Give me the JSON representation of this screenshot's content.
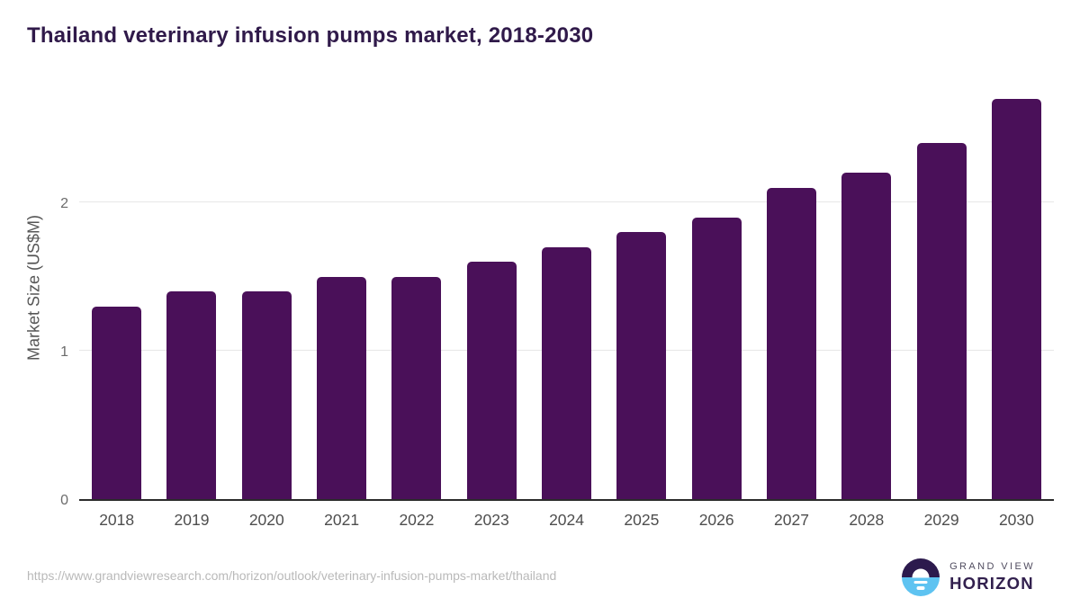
{
  "chart": {
    "title": "Thailand veterinary infusion pumps market, 2018-2030",
    "ylabel": "Market Size (US$M)"
  },
  "chart_data": {
    "type": "bar",
    "title": "Thailand veterinary infusion pumps market, 2018-2030",
    "categories": [
      "2018",
      "2019",
      "2020",
      "2021",
      "2022",
      "2023",
      "2024",
      "2025",
      "2026",
      "2027",
      "2028",
      "2029",
      "2030"
    ],
    "values": [
      1.3,
      1.4,
      1.4,
      1.5,
      1.5,
      1.6,
      1.7,
      1.8,
      1.9,
      2.1,
      2.2,
      2.4,
      2.7
    ],
    "xlabel": "",
    "ylabel": "Market Size (US$M)",
    "ylim": [
      0,
      2.77
    ],
    "yticks": [
      0,
      1,
      2
    ],
    "grid": "horizontal gridlines at y=1 and y=2",
    "legend": "none",
    "bar_color": "#4a1059"
  },
  "footer": {
    "url": "https://www.grandviewresearch.com/horizon/outlook/veterinary-infusion-pumps-market/thailand",
    "logo": {
      "line1": "GRAND VIEW",
      "line2": "HORIZON"
    }
  },
  "colors": {
    "bar": "#4a1059",
    "title_text": "#301a4a",
    "axis_line": "#2b2b2b",
    "gridline": "#e7e7e7",
    "ytick_text": "#6b6b6b",
    "xtick_text": "#4d4d4d",
    "url_text": "#b9b9b9",
    "logo_navy": "#2c1a4d",
    "logo_blue": "#5ec3f1"
  }
}
